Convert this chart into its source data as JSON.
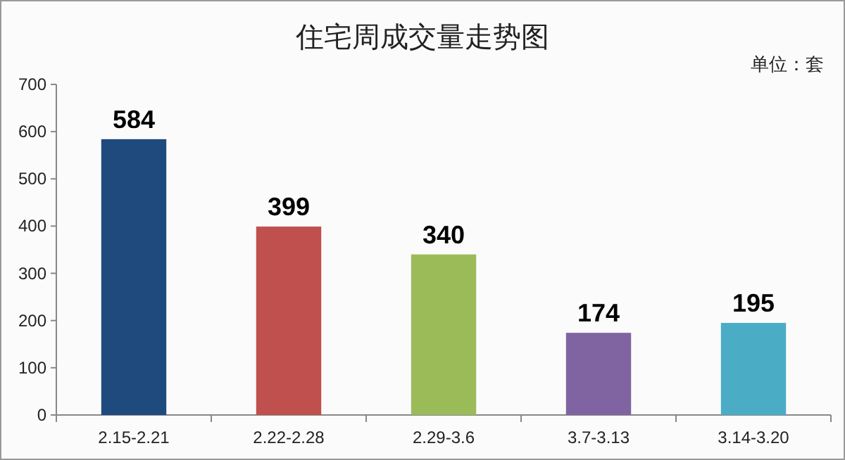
{
  "chart_data": {
    "type": "bar",
    "title": "住宅周成交量走势图",
    "annotations": [
      "单位：套"
    ],
    "categories": [
      "2.15-2.21",
      "2.22-2.28",
      "2.29-3.6",
      "3.7-3.13",
      "3.14-3.20"
    ],
    "values": [
      584,
      399,
      340,
      174,
      195
    ],
    "colors": [
      "#1f4a7e",
      "#c0504d",
      "#9bbb59",
      "#8064a2",
      "#4bacc6"
    ],
    "ylim": [
      0,
      700
    ],
    "yticks": [
      0,
      100,
      200,
      300,
      400,
      500,
      600,
      700
    ],
    "data_labels": true
  }
}
